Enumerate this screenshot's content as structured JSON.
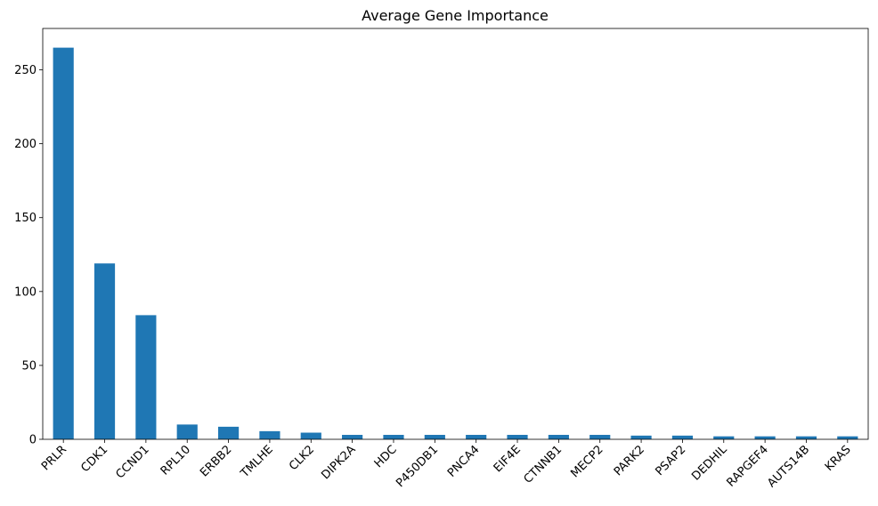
{
  "chart_data": {
    "type": "bar",
    "title": "Average Gene Importance",
    "xlabel": "",
    "ylabel": "",
    "categories": [
      "PRLR",
      "CDK1",
      "CCND1",
      "RPL10",
      "ERBB2",
      "TMLHE",
      "CLK2",
      "DIPK2A",
      "HDC",
      "P450DB1",
      "PNCA4",
      "EIF4E",
      "CTNNB1",
      "MECP2",
      "PARK2",
      "PSAP2",
      "DEDHIL",
      "RAPGEF4",
      "AUTS14B",
      "KRAS"
    ],
    "values": [
      265,
      119,
      84,
      10,
      8.5,
      5.5,
      4.5,
      3,
      3,
      3,
      3,
      3,
      3,
      3,
      2.5,
      2.5,
      2,
      2,
      2,
      2
    ],
    "ylim": [
      0,
      278
    ],
    "yticks": [
      0,
      50,
      100,
      150,
      200,
      250
    ],
    "grid": false,
    "legend": "none",
    "bar_color": "#1f77b4"
  }
}
